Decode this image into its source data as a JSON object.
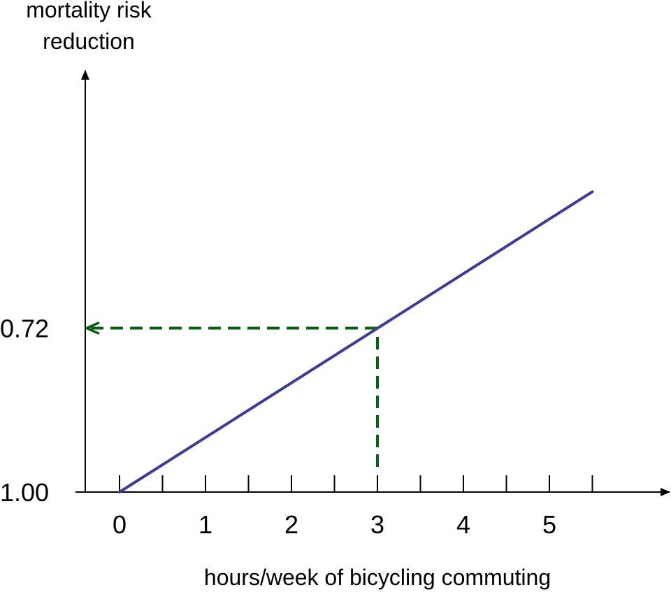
{
  "chart_data": {
    "type": "line",
    "ylabel_lines": [
      "mortality risk",
      "reduction"
    ],
    "xlabel": "hours/week of bicycling commuting",
    "x_tick_labels": [
      "0",
      "1",
      "2",
      "3",
      "4",
      "5"
    ],
    "x_minor_ticks": [
      0,
      0.5,
      1,
      1.5,
      2,
      2.5,
      3,
      3.5,
      4,
      4.5,
      5,
      5.5
    ],
    "xlim": [
      0,
      6.3
    ],
    "y_tick_labels": [
      {
        "label": "1.00",
        "value": 1.0
      },
      {
        "label": "0.72",
        "value": 0.72
      }
    ],
    "ylim": [
      1.0,
      0.28
    ],
    "series": [
      {
        "x": [
          0,
          5.5
        ],
        "y": [
          1.0,
          0.487
        ]
      }
    ],
    "annotation": {
      "x": 3,
      "y": 0.72
    },
    "grid": false,
    "colors": {
      "line": "#3c3c96",
      "annotation": "#0b5c14",
      "axis": "#000000"
    }
  }
}
